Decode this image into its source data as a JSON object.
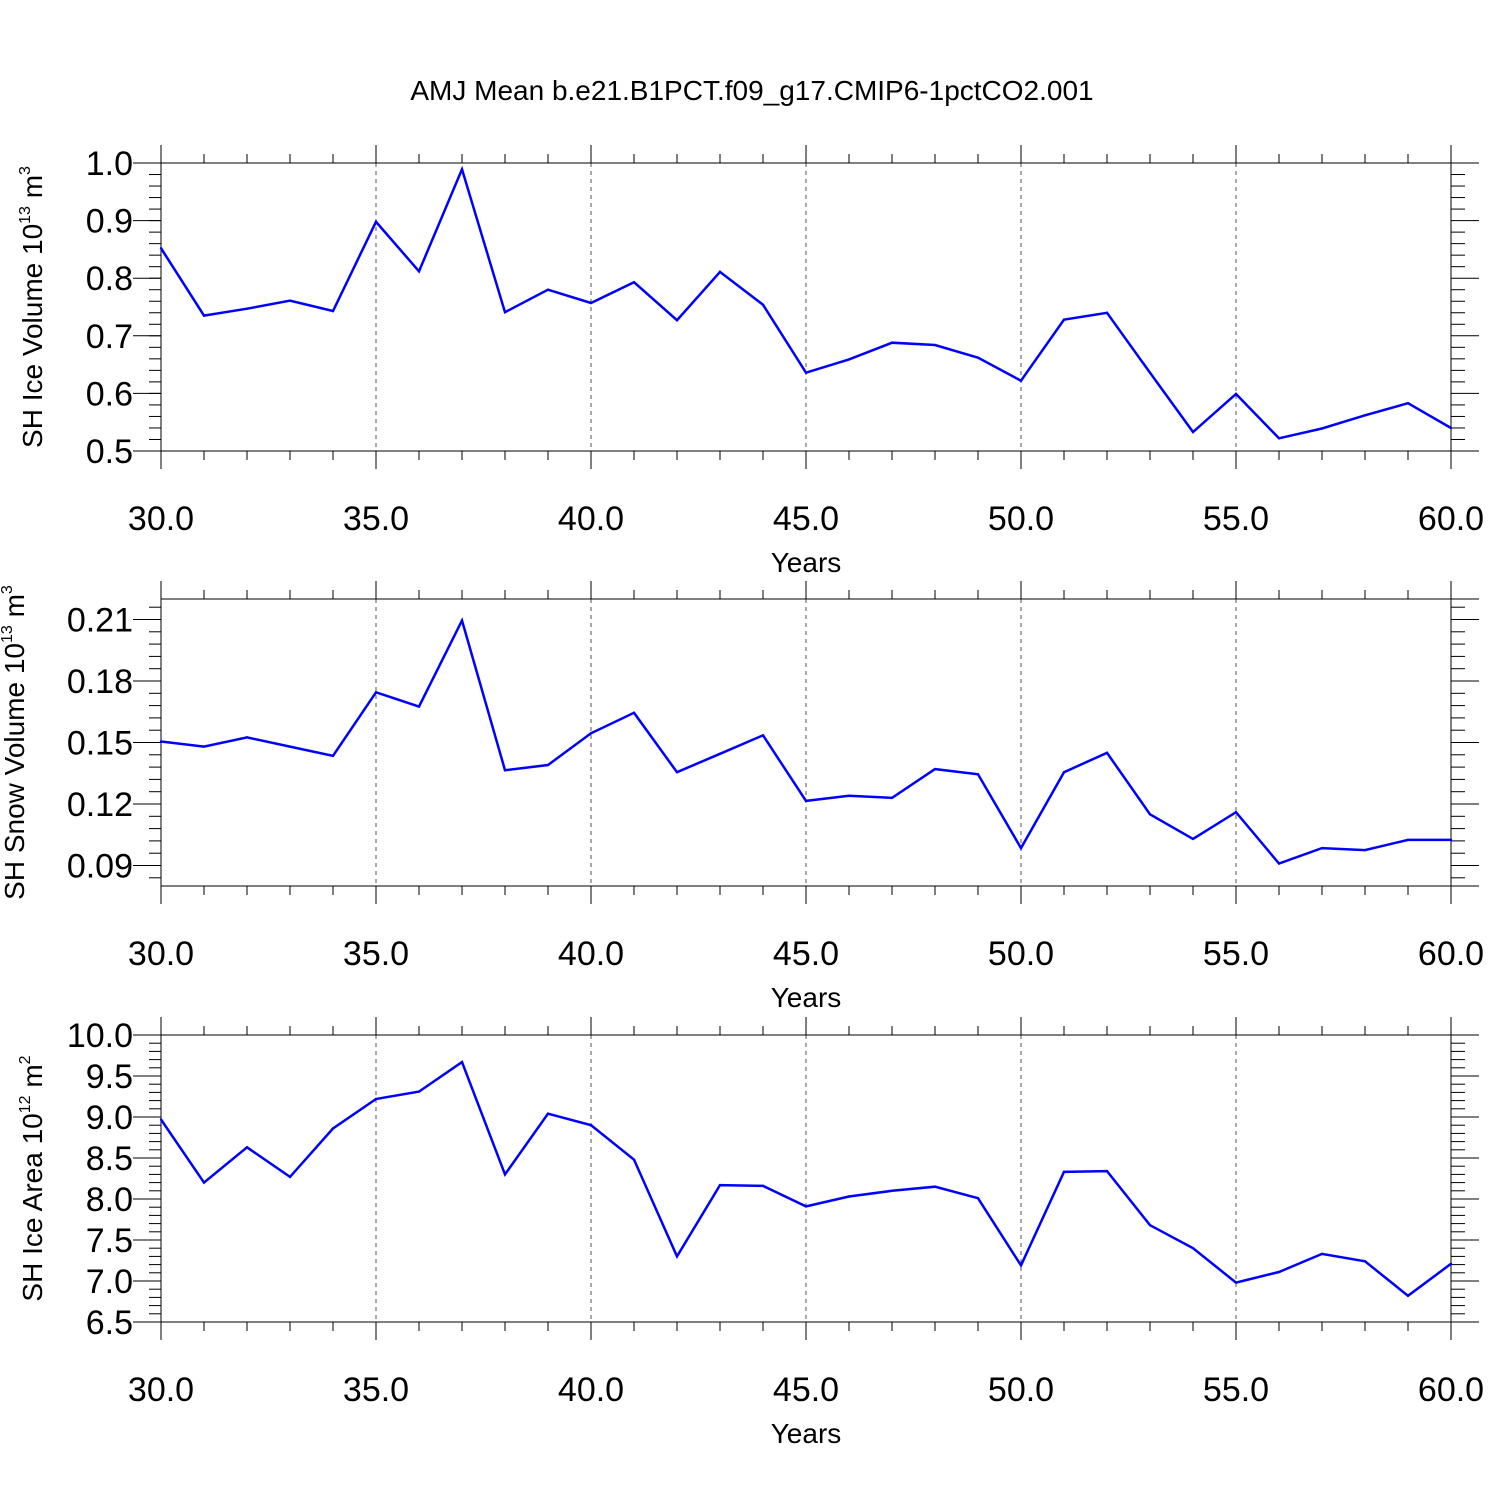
{
  "title": "AMJ Mean b.e21.B1PCT.f09_g17.CMIP6-1pctCO2.001",
  "colors": {
    "line": "#0000ff",
    "axis": "#000000",
    "grid": "#555555"
  },
  "chart_data": [
    {
      "type": "line",
      "ylabel": {
        "main": "SH Ice Volume 10",
        "exp": "13",
        "unit": " m",
        "unit_exp": "3"
      },
      "xlabel": "Years",
      "xlim": [
        30,
        60
      ],
      "ylim": [
        0.5,
        1.0
      ],
      "x_ticks": [
        "30.0",
        "35.0",
        "40.0",
        "45.0",
        "50.0",
        "55.0",
        "60.0"
      ],
      "y_ticks": [
        "0.5",
        "0.6",
        "0.7",
        "0.8",
        "0.9",
        "1.0"
      ],
      "grid": "vertical dashed at major x ticks",
      "x": [
        30,
        31,
        32,
        33,
        34,
        35,
        36,
        37,
        38,
        39,
        40,
        41,
        42,
        43,
        44,
        45,
        46,
        47,
        48,
        49,
        50,
        51,
        52,
        53,
        54,
        55,
        56,
        57,
        58,
        59,
        60
      ],
      "series": [
        {
          "values": [
            0.852,
            0.735,
            0.747,
            0.761,
            0.743,
            0.898,
            0.812,
            0.989,
            0.741,
            0.78,
            0.757,
            0.793,
            0.727,
            0.811,
            0.754,
            0.636,
            0.659,
            0.688,
            0.684,
            0.662,
            0.622,
            0.728,
            0.74,
            0.636,
            0.533,
            0.599,
            0.522,
            0.539,
            0.562,
            0.583,
            0.54
          ]
        }
      ]
    },
    {
      "type": "line",
      "ylabel": {
        "main": "SH Snow Volume 10",
        "exp": "13",
        "unit": " m",
        "unit_exp": "3"
      },
      "xlabel": "Years",
      "xlim": [
        30,
        60
      ],
      "ylim": [
        0.08,
        0.22
      ],
      "x_ticks": [
        "30.0",
        "35.0",
        "40.0",
        "45.0",
        "50.0",
        "55.0",
        "60.0"
      ],
      "y_ticks": [
        "0.09",
        "0.12",
        "0.15",
        "0.18",
        "0.21"
      ],
      "grid": "vertical dashed at major x ticks",
      "x": [
        30,
        31,
        32,
        33,
        34,
        35,
        36,
        37,
        38,
        39,
        40,
        41,
        42,
        43,
        44,
        45,
        46,
        47,
        48,
        49,
        50,
        51,
        52,
        53,
        54,
        55,
        56,
        57,
        58,
        59,
        60
      ],
      "series": [
        {
          "values": [
            0.1505,
            0.148,
            0.1525,
            0.148,
            0.1435,
            0.1745,
            0.1675,
            0.2095,
            0.1365,
            0.139,
            0.1545,
            0.1645,
            0.1355,
            0.1445,
            0.1535,
            0.1215,
            0.124,
            0.123,
            0.137,
            0.1345,
            0.0985,
            0.1355,
            0.145,
            0.115,
            0.103,
            0.116,
            0.091,
            0.0985,
            0.0975,
            0.1025,
            0.1025
          ]
        }
      ]
    },
    {
      "type": "line",
      "ylabel": {
        "main": "SH Ice Area 10",
        "exp": "12",
        "unit": " m",
        "unit_exp": "2"
      },
      "xlabel": "Years",
      "xlim": [
        30,
        60
      ],
      "ylim": [
        6.5,
        10.0
      ],
      "x_ticks": [
        "30.0",
        "35.0",
        "40.0",
        "45.0",
        "50.0",
        "55.0",
        "60.0"
      ],
      "y_ticks": [
        "6.5",
        "7.0",
        "7.5",
        "8.0",
        "8.5",
        "9.0",
        "9.5",
        "10.0"
      ],
      "grid": "vertical dashed at major x ticks",
      "x": [
        30,
        31,
        32,
        33,
        34,
        35,
        36,
        37,
        38,
        39,
        40,
        41,
        42,
        43,
        44,
        45,
        46,
        47,
        48,
        49,
        50,
        51,
        52,
        53,
        54,
        55,
        56,
        57,
        58,
        59,
        60
      ],
      "series": [
        {
          "values": [
            8.97,
            8.2,
            8.63,
            8.27,
            8.86,
            9.22,
            9.31,
            9.67,
            8.3,
            9.04,
            8.9,
            8.48,
            7.3,
            8.17,
            8.16,
            7.91,
            8.03,
            8.1,
            8.15,
            8.01,
            7.19,
            8.33,
            8.34,
            7.68,
            7.4,
            6.98,
            7.11,
            7.33,
            7.24,
            6.82,
            7.21
          ]
        }
      ]
    }
  ]
}
